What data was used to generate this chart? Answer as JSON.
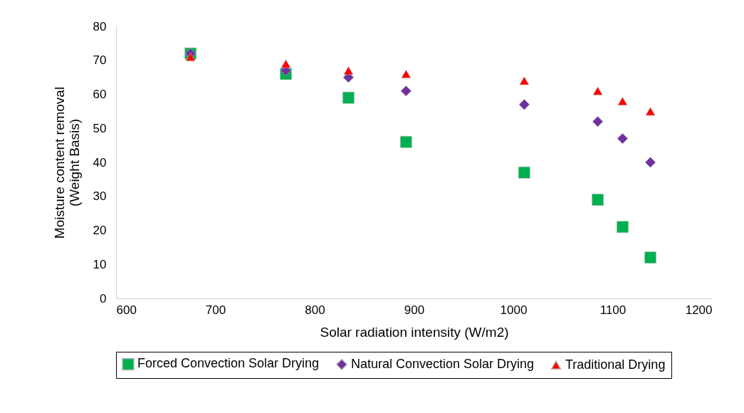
{
  "chart_data": {
    "type": "scatter",
    "xlabel": "Solar radiation intensity (W/m2)",
    "ylabel": "Moisture content removal\n(Weight Basis)",
    "x": [
      675,
      771,
      834,
      892,
      1011,
      1085,
      1110,
      1138
    ],
    "series": [
      {
        "name": "Forced Convection Solar Drying",
        "color": "#00b050",
        "marker": "square",
        "values": [
          72,
          66,
          59,
          46,
          37,
          29,
          21,
          12
        ]
      },
      {
        "name": "Natural Convection Solar Drying",
        "color": "#7030a0",
        "marker": "diamond",
        "values": [
          72,
          67,
          65,
          61,
          57,
          52,
          47,
          40
        ]
      },
      {
        "name": "Traditional Drying",
        "color": "#ff0000",
        "marker": "triangle",
        "values": [
          71,
          69,
          67,
          66,
          64,
          61,
          58,
          55
        ]
      }
    ],
    "xlim": [
      600,
      1200
    ],
    "xticks": [
      600,
      700,
      800,
      900,
      1000,
      1100,
      1200
    ],
    "ylim": [
      0,
      80
    ],
    "yticks": [
      0,
      10,
      20,
      30,
      40,
      50,
      60,
      70,
      80
    ],
    "grid": false,
    "legend": "bottom"
  }
}
